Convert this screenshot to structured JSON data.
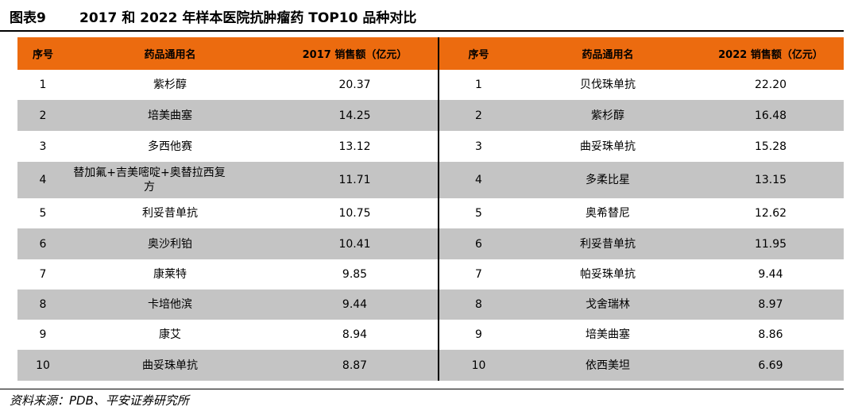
{
  "title": {
    "label": "图表9",
    "text": "2017 和 2022 年样本医院抗肿瘤药 TOP10 品种对比"
  },
  "headers": [
    "序号",
    "药品通用名",
    "2017 销售额（亿元）",
    "序号",
    "药品通用名",
    "2022 销售额（亿元）"
  ],
  "rows": [
    {
      "rank_2017": "1",
      "drug_2017": "紫杉醇",
      "sales_2017": "20.37",
      "rank_2022": "1",
      "drug_2022": "贝伐珠单抗",
      "sales_2022": "22.20"
    },
    {
      "rank_2017": "2",
      "drug_2017": "培美曲塞",
      "sales_2017": "14.25",
      "rank_2022": "2",
      "drug_2022": "紫杉醇",
      "sales_2022": "16.48"
    },
    {
      "rank_2017": "3",
      "drug_2017": "多西他赛",
      "sales_2017": "13.12",
      "rank_2022": "3",
      "drug_2022": "曲妥珠单抗",
      "sales_2022": "15.28"
    },
    {
      "rank_2017": "4",
      "drug_2017": "替加氟+吉美嘧啶+奥替拉西复方",
      "sales_2017": "11.71",
      "rank_2022": "4",
      "drug_2022": "多柔比星",
      "sales_2022": "13.15"
    },
    {
      "rank_2017": "5",
      "drug_2017": "利妥昔单抗",
      "sales_2017": "10.75",
      "rank_2022": "5",
      "drug_2022": "奥希替尼",
      "sales_2022": "12.62"
    },
    {
      "rank_2017": "6",
      "drug_2017": "奥沙利铂",
      "sales_2017": "10.41",
      "rank_2022": "6",
      "drug_2022": "利妥昔单抗",
      "sales_2022": "11.95"
    },
    {
      "rank_2017": "7",
      "drug_2017": "康莱特",
      "sales_2017": "9.85",
      "rank_2022": "7",
      "drug_2022": "帕妥珠单抗",
      "sales_2022": "9.44"
    },
    {
      "rank_2017": "8",
      "drug_2017": "卡培他滨",
      "sales_2017": "9.44",
      "rank_2022": "8",
      "drug_2022": "戈舍瑞林",
      "sales_2022": "8.97"
    },
    {
      "rank_2017": "9",
      "drug_2017": "康艾",
      "sales_2017": "8.94",
      "rank_2022": "9",
      "drug_2022": "培美曲塞",
      "sales_2022": "8.86"
    },
    {
      "rank_2017": "10",
      "drug_2017": "曲妥珠单抗",
      "sales_2017": "8.87",
      "rank_2022": "10",
      "drug_2022": "依西美坦",
      "sales_2022": "6.69"
    }
  ],
  "source": "资料来源：PDB、平安证券研究所",
  "colors": {
    "header_bg": "#ec6b0f",
    "stripe_bg": "#c4c4c4"
  }
}
